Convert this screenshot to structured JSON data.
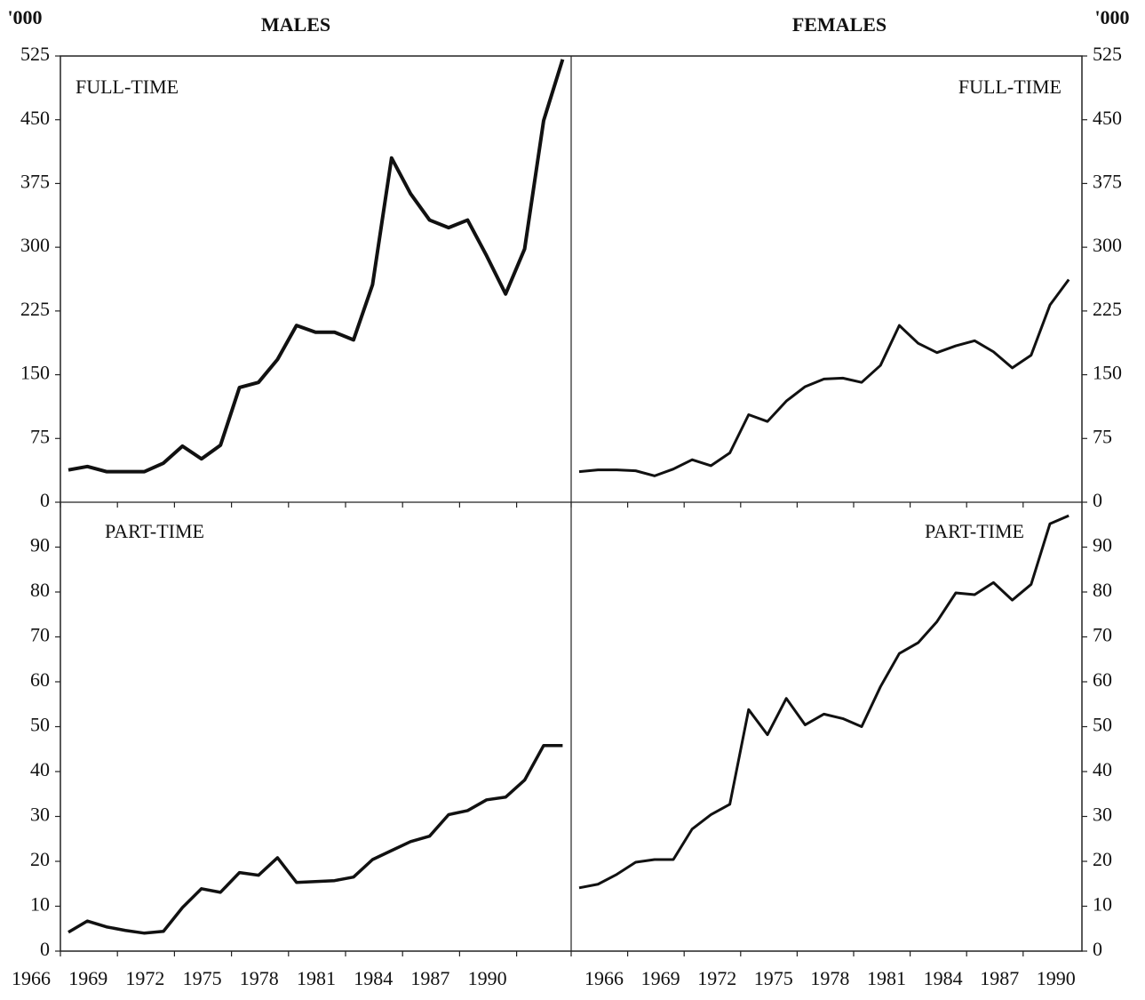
{
  "chart_data": [
    {
      "type": "line",
      "title": "MALES",
      "ylabel": "'000",
      "label": "FULL-TIME",
      "color": "#111",
      "values": [
        38,
        42,
        36,
        36,
        36,
        46,
        66,
        51,
        67,
        135,
        141,
        168,
        208,
        200,
        200,
        191,
        256,
        405,
        363,
        332,
        323,
        332,
        290,
        245,
        298,
        449,
        521
      ],
      "ylim": [
        0,
        525
      ],
      "yticks": [
        0,
        75,
        150,
        225,
        300,
        375,
        450,
        525
      ]
    },
    {
      "type": "line",
      "title": "FEMALES",
      "ylabel": "'000",
      "label": "FULL-TIME",
      "color": "#111",
      "values": [
        36,
        38,
        38,
        37,
        31,
        39,
        50,
        43,
        58,
        103,
        95,
        119,
        136,
        145,
        146,
        141,
        161,
        208,
        187,
        176,
        184,
        190,
        177,
        158,
        173,
        232,
        262
      ],
      "ylim": [
        0,
        525
      ],
      "yticks": [
        0,
        75,
        150,
        225,
        300,
        375,
        450,
        525
      ]
    },
    {
      "type": "line",
      "label": "PART-TIME",
      "color": "#111",
      "categories": [
        "1966",
        null,
        null,
        "1969",
        null,
        null,
        "1972",
        null,
        null,
        "1975",
        null,
        null,
        "1978",
        null,
        null,
        "1981",
        null,
        null,
        "1984",
        null,
        null,
        "1987",
        null,
        null,
        "1990",
        null,
        null
      ],
      "values": [
        4.2,
        6.7,
        5.4,
        4.6,
        4,
        4.4,
        9.7,
        13.9,
        13.1,
        17.5,
        16.9,
        20.8,
        15.3,
        15.5,
        15.7,
        16.5,
        20.4,
        22.4,
        24.4,
        25.6,
        30.4,
        31.3,
        33.7,
        34.3,
        38.1,
        45.8,
        45.8
      ],
      "ylim": [
        0,
        100
      ],
      "yticks": [
        0,
        10,
        20,
        30,
        40,
        50,
        60,
        70,
        80,
        90
      ]
    },
    {
      "type": "line",
      "label": "PART-TIME",
      "color": "#111",
      "categories": [
        "1966",
        null,
        null,
        "1969",
        null,
        null,
        "1972",
        null,
        null,
        "1975",
        null,
        null,
        "1978",
        null,
        null,
        "1981",
        null,
        null,
        "1984",
        null,
        null,
        "1987",
        null,
        null,
        "1990",
        null,
        null
      ],
      "values": [
        14.1,
        14.9,
        17.1,
        19.8,
        20.4,
        20.4,
        27.2,
        30.4,
        32.7,
        53.8,
        48.2,
        56.3,
        50.4,
        52.8,
        51.8,
        50,
        58.9,
        66.3,
        68.7,
        73.4,
        79.8,
        79.4,
        82.1,
        78.2,
        81.7,
        95.2,
        97
      ],
      "ylim": [
        0,
        100
      ],
      "yticks": [
        0,
        10,
        20,
        30,
        40,
        50,
        60,
        70,
        80,
        90
      ]
    }
  ]
}
